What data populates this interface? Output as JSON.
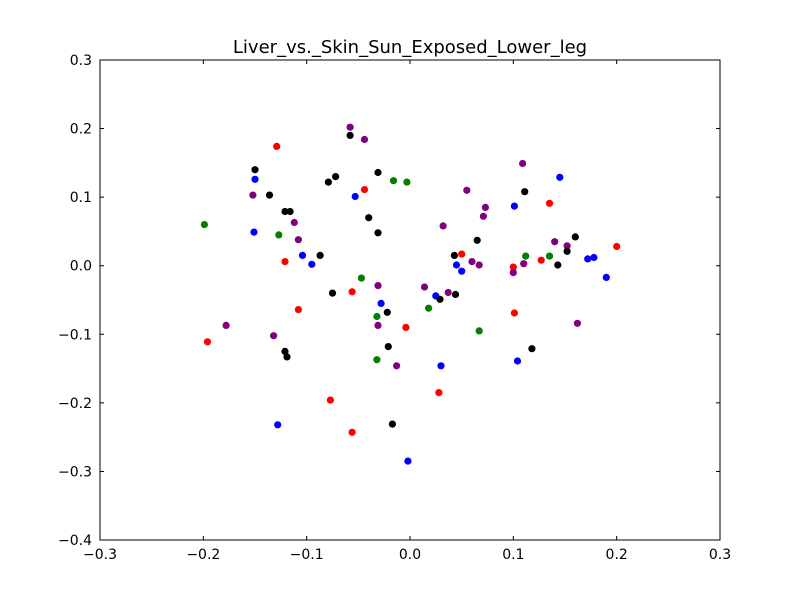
{
  "chart_data": {
    "type": "scatter",
    "title": "Liver_vs._Skin_Sun_Exposed_Lower_leg",
    "xlabel": "",
    "ylabel": "",
    "xlim": [
      -0.3,
      0.3
    ],
    "ylim": [
      -0.4,
      0.3
    ],
    "xticks": [
      -0.3,
      -0.2,
      -0.1,
      0.0,
      0.1,
      0.2,
      0.3
    ],
    "xtick_labels": [
      "−0.3",
      "−0.2",
      "−0.1",
      "0.0",
      "0.1",
      "0.2",
      "0.3"
    ],
    "yticks": [
      -0.4,
      -0.3,
      -0.2,
      -0.1,
      0.0,
      0.1,
      0.2,
      0.3
    ],
    "ytick_labels": [
      "−0.4",
      "−0.3",
      "−0.2",
      "−0.1",
      "0.0",
      "0.1",
      "0.2",
      "0.3"
    ],
    "grid": false,
    "legend": "none",
    "series": [
      {
        "color": "#0000ff",
        "points": [
          [
            -0.15,
            0.126
          ],
          [
            -0.151,
            0.049
          ],
          [
            -0.053,
            0.101
          ],
          [
            -0.104,
            0.015
          ],
          [
            -0.095,
            0.002
          ],
          [
            -0.028,
            -0.055
          ],
          [
            -0.002,
            -0.285
          ],
          [
            -0.128,
            -0.232
          ],
          [
            0.025,
            -0.044
          ],
          [
            0.03,
            -0.146
          ],
          [
            0.045,
            0.001
          ],
          [
            0.05,
            -0.008
          ],
          [
            0.101,
            0.087
          ],
          [
            0.104,
            -0.139
          ],
          [
            0.145,
            0.129
          ],
          [
            0.172,
            0.01
          ],
          [
            0.178,
            0.012
          ],
          [
            0.19,
            -0.017
          ]
        ]
      },
      {
        "color": "#ff0000",
        "points": [
          [
            -0.129,
            0.174
          ],
          [
            -0.121,
            0.006
          ],
          [
            -0.196,
            -0.111
          ],
          [
            -0.108,
            -0.064
          ],
          [
            -0.077,
            -0.196
          ],
          [
            -0.056,
            -0.038
          ],
          [
            -0.056,
            -0.243
          ],
          [
            -0.044,
            0.111
          ],
          [
            -0.004,
            -0.09
          ],
          [
            0.028,
            -0.185
          ],
          [
            0.05,
            0.017
          ],
          [
            0.1,
            -0.002
          ],
          [
            0.101,
            -0.069
          ],
          [
            0.127,
            0.008
          ],
          [
            0.135,
            0.091
          ],
          [
            0.2,
            0.028
          ]
        ]
      },
      {
        "color": "#008000",
        "points": [
          [
            -0.199,
            0.06
          ],
          [
            -0.127,
            0.045
          ],
          [
            -0.047,
            -0.018
          ],
          [
            -0.032,
            -0.074
          ],
          [
            -0.032,
            -0.137
          ],
          [
            -0.016,
            0.124
          ],
          [
            -0.003,
            0.122
          ],
          [
            0.018,
            -0.062
          ],
          [
            0.067,
            -0.095
          ],
          [
            0.112,
            0.014
          ],
          [
            0.135,
            0.014
          ]
        ]
      },
      {
        "color": "#800080",
        "points": [
          [
            -0.152,
            0.103
          ],
          [
            -0.178,
            -0.087
          ],
          [
            -0.132,
            -0.102
          ],
          [
            -0.112,
            0.063
          ],
          [
            -0.108,
            0.038
          ],
          [
            -0.058,
            0.202
          ],
          [
            -0.044,
            0.184
          ],
          [
            -0.031,
            -0.029
          ],
          [
            -0.031,
            -0.087
          ],
          [
            -0.013,
            -0.146
          ],
          [
            0.014,
            -0.031
          ],
          [
            0.032,
            0.058
          ],
          [
            0.037,
            -0.039
          ],
          [
            0.055,
            0.11
          ],
          [
            0.06,
            0.006
          ],
          [
            0.067,
            0.001
          ],
          [
            0.071,
            0.072
          ],
          [
            0.073,
            0.085
          ],
          [
            0.1,
            -0.01
          ],
          [
            0.109,
            0.149
          ],
          [
            0.11,
            0.003
          ],
          [
            0.14,
            0.035
          ],
          [
            0.152,
            0.029
          ],
          [
            0.162,
            -0.084
          ]
        ]
      },
      {
        "color": "#000000",
        "points": [
          [
            -0.15,
            0.14
          ],
          [
            -0.136,
            0.103
          ],
          [
            -0.121,
            0.079
          ],
          [
            -0.116,
            0.079
          ],
          [
            -0.121,
            -0.125
          ],
          [
            -0.119,
            -0.133
          ],
          [
            -0.087,
            0.015
          ],
          [
            -0.079,
            0.122
          ],
          [
            -0.075,
            -0.04
          ],
          [
            -0.072,
            0.13
          ],
          [
            -0.058,
            0.19
          ],
          [
            -0.04,
            0.07
          ],
          [
            -0.031,
            0.136
          ],
          [
            -0.031,
            0.048
          ],
          [
            -0.022,
            -0.068
          ],
          [
            -0.021,
            -0.118
          ],
          [
            -0.017,
            -0.231
          ],
          [
            0.029,
            -0.049
          ],
          [
            0.043,
            0.015
          ],
          [
            0.044,
            -0.042
          ],
          [
            0.065,
            0.037
          ],
          [
            0.111,
            0.108
          ],
          [
            0.118,
            -0.121
          ],
          [
            0.143,
            0.001
          ],
          [
            0.152,
            0.021
          ],
          [
            0.16,
            0.042
          ]
        ]
      }
    ]
  }
}
